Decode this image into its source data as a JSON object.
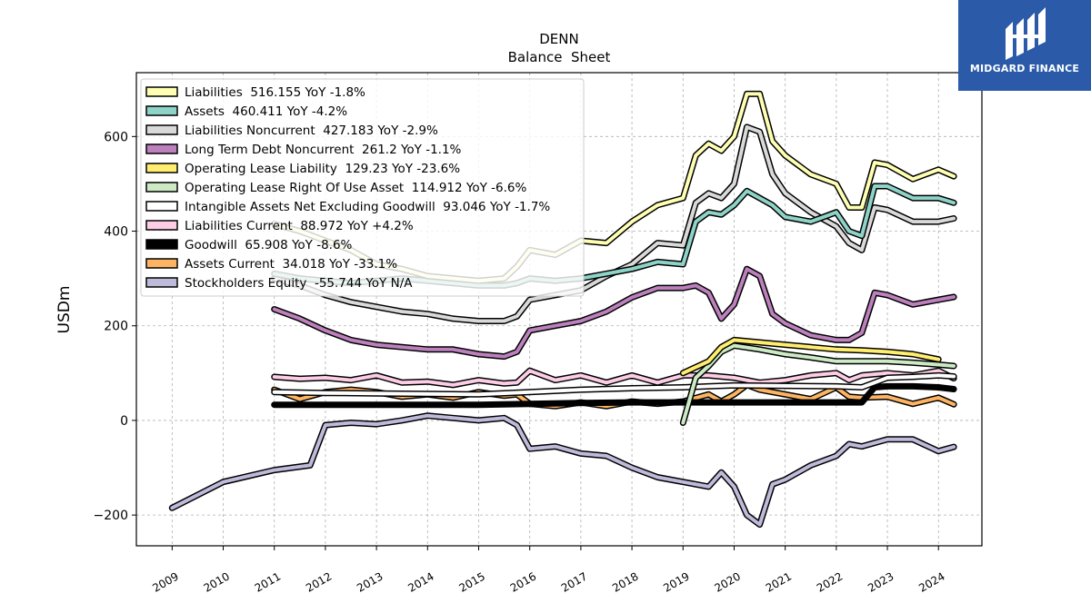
{
  "logo": {
    "text": "MIDGARD FINANCE",
    "bg": "#2a5aa8"
  },
  "chart_data": {
    "type": "line",
    "title": "DENN",
    "subtitle": "Balance  Sheet",
    "ylabel": "USDm",
    "xlabel": "",
    "xlim": [
      2008.3,
      2024.85
    ],
    "ylim": [
      -265,
      735
    ],
    "yticks": [
      -200,
      0,
      200,
      400,
      600
    ],
    "ytick_labels": [
      "−200",
      "0",
      "200",
      "400",
      "600"
    ],
    "xticks": [
      2009,
      2010,
      2011,
      2012,
      2013,
      2014,
      2015,
      2016,
      2017,
      2018,
      2019,
      2020,
      2021,
      2022,
      2023,
      2024
    ],
    "xtick_labels": [
      "2009",
      "2010",
      "2011",
      "2012",
      "2013",
      "2014",
      "2015",
      "2016",
      "2017",
      "2018",
      "2019",
      "2020",
      "2021",
      "2022",
      "2023",
      "2024"
    ],
    "grid": true,
    "legend_position": "top-left",
    "series": [
      {
        "name": "Liabilities",
        "legend": "Liabilities  516.155 YoY -1.8%",
        "color": "#ffffb3",
        "x": [
          2011.0,
          2011.5,
          2012.0,
          2012.5,
          2013.0,
          2013.5,
          2014.0,
          2014.5,
          2015.0,
          2015.5,
          2015.75,
          2016.0,
          2016.5,
          2017.0,
          2017.5,
          2018.0,
          2018.5,
          2019.0,
          2019.25,
          2019.5,
          2019.75,
          2020.0,
          2020.25,
          2020.5,
          2020.75,
          2021.0,
          2021.5,
          2022.0,
          2022.25,
          2022.5,
          2022.75,
          2023.0,
          2023.5,
          2024.0,
          2024.3
        ],
        "y": [
          415,
          400,
          380,
          360,
          330,
          320,
          305,
          300,
          295,
          300,
          325,
          360,
          350,
          380,
          375,
          420,
          455,
          470,
          560,
          585,
          570,
          600,
          690,
          690,
          590,
          560,
          520,
          500,
          450,
          450,
          545,
          540,
          510,
          530,
          516
        ]
      },
      {
        "name": "Assets",
        "legend": "Assets  460.411 YoY -4.2%",
        "color": "#8dd3c7",
        "x": [
          2011.0,
          2011.5,
          2012.0,
          2012.5,
          2013.0,
          2013.5,
          2014.0,
          2014.5,
          2015.0,
          2015.5,
          2015.75,
          2016.0,
          2016.5,
          2017.0,
          2017.5,
          2018.0,
          2018.5,
          2019.0,
          2019.25,
          2019.5,
          2019.75,
          2020.0,
          2020.25,
          2020.5,
          2020.75,
          2021.0,
          2021.5,
          2022.0,
          2022.25,
          2022.5,
          2022.75,
          2023.0,
          2023.5,
          2024.0,
          2024.3
        ],
        "y": [
          310,
          300,
          295,
          290,
          295,
          300,
          295,
          290,
          285,
          285,
          290,
          300,
          295,
          300,
          310,
          320,
          335,
          330,
          420,
          440,
          435,
          455,
          485,
          470,
          455,
          430,
          420,
          440,
          400,
          390,
          495,
          495,
          470,
          470,
          460
        ]
      },
      {
        "name": "Liabilities Noncurrent",
        "legend": "Liabilities Noncurrent  427.183 YoY -2.9%",
        "color": "#d9d9d9",
        "x": [
          2011.0,
          2011.5,
          2012.0,
          2012.5,
          2013.0,
          2013.5,
          2014.0,
          2014.5,
          2015.0,
          2015.5,
          2015.75,
          2016.0,
          2016.5,
          2017.0,
          2017.5,
          2018.0,
          2018.5,
          2019.0,
          2019.25,
          2019.5,
          2019.75,
          2020.0,
          2020.25,
          2020.5,
          2020.75,
          2021.0,
          2021.5,
          2022.0,
          2022.25,
          2022.5,
          2022.75,
          2023.0,
          2023.5,
          2024.0,
          2024.3
        ],
        "y": [
          300,
          285,
          265,
          250,
          240,
          230,
          225,
          215,
          210,
          210,
          220,
          255,
          265,
          275,
          305,
          330,
          375,
          370,
          460,
          480,
          470,
          500,
          620,
          610,
          520,
          480,
          440,
          410,
          375,
          360,
          450,
          445,
          420,
          420,
          427
        ]
      },
      {
        "name": "Long Term Debt Noncurrent",
        "legend": "Long Term Debt Noncurrent  261.2 YoY -1.1%",
        "color": "#bc80bd",
        "x": [
          2011.0,
          2011.5,
          2012.0,
          2012.5,
          2013.0,
          2013.5,
          2014.0,
          2014.5,
          2015.0,
          2015.5,
          2015.75,
          2016.0,
          2016.5,
          2017.0,
          2017.5,
          2018.0,
          2018.5,
          2019.0,
          2019.25,
          2019.5,
          2019.75,
          2020.0,
          2020.25,
          2020.5,
          2020.75,
          2021.0,
          2021.5,
          2022.0,
          2022.25,
          2022.5,
          2022.75,
          2023.0,
          2023.5,
          2024.0,
          2024.3
        ],
        "y": [
          235,
          215,
          190,
          170,
          160,
          155,
          150,
          150,
          140,
          135,
          145,
          190,
          200,
          210,
          230,
          260,
          280,
          280,
          285,
          270,
          215,
          245,
          320,
          305,
          225,
          205,
          180,
          170,
          170,
          185,
          270,
          265,
          245,
          255,
          261
        ]
      },
      {
        "name": "Operating Lease Liability",
        "legend": "Operating Lease Liability  129.23 YoY -23.6%",
        "color": "#ffed6f",
        "x": [
          2019.0,
          2019.5,
          2019.75,
          2020.0,
          2020.5,
          2021.0,
          2021.5,
          2022.0,
          2022.5,
          2023.0,
          2023.5,
          2024.0
        ],
        "y": [
          100,
          125,
          155,
          170,
          165,
          160,
          155,
          150,
          148,
          145,
          140,
          129
        ]
      },
      {
        "name": "Operating Lease Right Of Use Asset",
        "legend": "Operating Lease Right Of Use Asset  114.912 YoY -6.6%",
        "color": "#ccebc5",
        "x": [
          2019.0,
          2019.25,
          2019.5,
          2019.75,
          2020.0,
          2020.5,
          2021.0,
          2021.5,
          2022.0,
          2022.5,
          2023.0,
          2023.5,
          2024.0,
          2024.3
        ],
        "y": [
          -5,
          90,
          115,
          145,
          158,
          150,
          140,
          133,
          125,
          125,
          125,
          122,
          118,
          115
        ]
      },
      {
        "name": "Intangible Assets Net Excluding Goodwill",
        "legend": "Intangible Assets Net Excluding Goodwill  93.046 YoY -1.7%",
        "color": "#ffffff",
        "x": [
          2011.0,
          2012.0,
          2013.0,
          2014.0,
          2015.0,
          2016.0,
          2017.0,
          2018.0,
          2019.0,
          2019.5,
          2020.0,
          2021.0,
          2022.0,
          2022.5,
          2023.0,
          2023.5,
          2024.0,
          2024.3
        ],
        "y": [
          60,
          58,
          57,
          56,
          55,
          60,
          65,
          68,
          70,
          72,
          74,
          73,
          72,
          70,
          90,
          92,
          95,
          93
        ]
      },
      {
        "name": "Liabilities Current",
        "legend": "Liabilities Current  88.972 YoY +4.2%",
        "color": "#fccde5",
        "x": [
          2011.0,
          2011.5,
          2012.0,
          2012.5,
          2013.0,
          2013.5,
          2014.0,
          2014.5,
          2015.0,
          2015.5,
          2015.75,
          2016.0,
          2016.5,
          2017.0,
          2017.5,
          2018.0,
          2018.5,
          2019.0,
          2019.5,
          2020.0,
          2020.5,
          2021.0,
          2021.5,
          2022.0,
          2022.25,
          2022.5,
          2023.0,
          2023.5,
          2024.0,
          2024.3
        ],
        "y": [
          92,
          88,
          90,
          85,
          95,
          80,
          82,
          75,
          85,
          78,
          80,
          105,
          85,
          95,
          80,
          95,
          80,
          95,
          95,
          90,
          80,
          85,
          95,
          100,
          85,
          95,
          100,
          95,
          105,
          89
        ]
      },
      {
        "name": "Goodwill",
        "legend": "Goodwill  65.908 YoY -8.6%",
        "color": "#000000",
        "x": [
          2011.0,
          2012.0,
          2013.0,
          2014.0,
          2015.0,
          2016.0,
          2017.0,
          2018.0,
          2019.0,
          2020.0,
          2021.0,
          2022.0,
          2022.5,
          2022.75,
          2023.0,
          2023.5,
          2024.0,
          2024.3
        ],
        "y": [
          33,
          33,
          33,
          33,
          33,
          35,
          37,
          38,
          38,
          38,
          38,
          38,
          38,
          70,
          72,
          72,
          70,
          66
        ]
      },
      {
        "name": "Assets Current",
        "legend": "Assets Current  34.018 YoY -33.1%",
        "color": "#fdb462",
        "x": [
          2011.0,
          2011.5,
          2012.0,
          2012.5,
          2013.0,
          2013.5,
          2014.0,
          2014.5,
          2015.0,
          2015.5,
          2015.75,
          2016.0,
          2016.5,
          2017.0,
          2017.5,
          2018.0,
          2018.5,
          2019.0,
          2019.5,
          2019.75,
          2020.0,
          2020.25,
          2020.5,
          2021.0,
          2021.5,
          2022.0,
          2022.25,
          2022.5,
          2023.0,
          2023.5,
          2024.0,
          2024.3
        ],
        "y": [
          65,
          45,
          60,
          65,
          60,
          50,
          55,
          48,
          60,
          52,
          55,
          35,
          30,
          38,
          30,
          40,
          35,
          40,
          55,
          40,
          55,
          75,
          65,
          55,
          45,
          70,
          50,
          48,
          50,
          35,
          48,
          34
        ]
      },
      {
        "name": "Stockholders Equity",
        "legend": "Stockholders Equity  -55.744 YoY N/A",
        "color": "#bebada",
        "x": [
          2009.0,
          2010.0,
          2011.0,
          2011.7,
          2012.0,
          2012.5,
          2013.0,
          2013.5,
          2014.0,
          2014.5,
          2015.0,
          2015.5,
          2015.75,
          2016.0,
          2016.5,
          2017.0,
          2017.5,
          2018.0,
          2018.5,
          2019.0,
          2019.5,
          2019.75,
          2020.0,
          2020.25,
          2020.5,
          2020.75,
          2021.0,
          2021.5,
          2022.0,
          2022.25,
          2022.5,
          2023.0,
          2023.5,
          2024.0,
          2024.3
        ],
        "y": [
          -185,
          -130,
          -105,
          -95,
          -10,
          -5,
          -8,
          0,
          10,
          5,
          0,
          5,
          -10,
          -60,
          -55,
          -70,
          -75,
          -100,
          -120,
          -130,
          -140,
          -110,
          -140,
          -200,
          -220,
          -135,
          -125,
          -95,
          -75,
          -50,
          -55,
          -40,
          -40,
          -65,
          -56
        ]
      }
    ]
  }
}
